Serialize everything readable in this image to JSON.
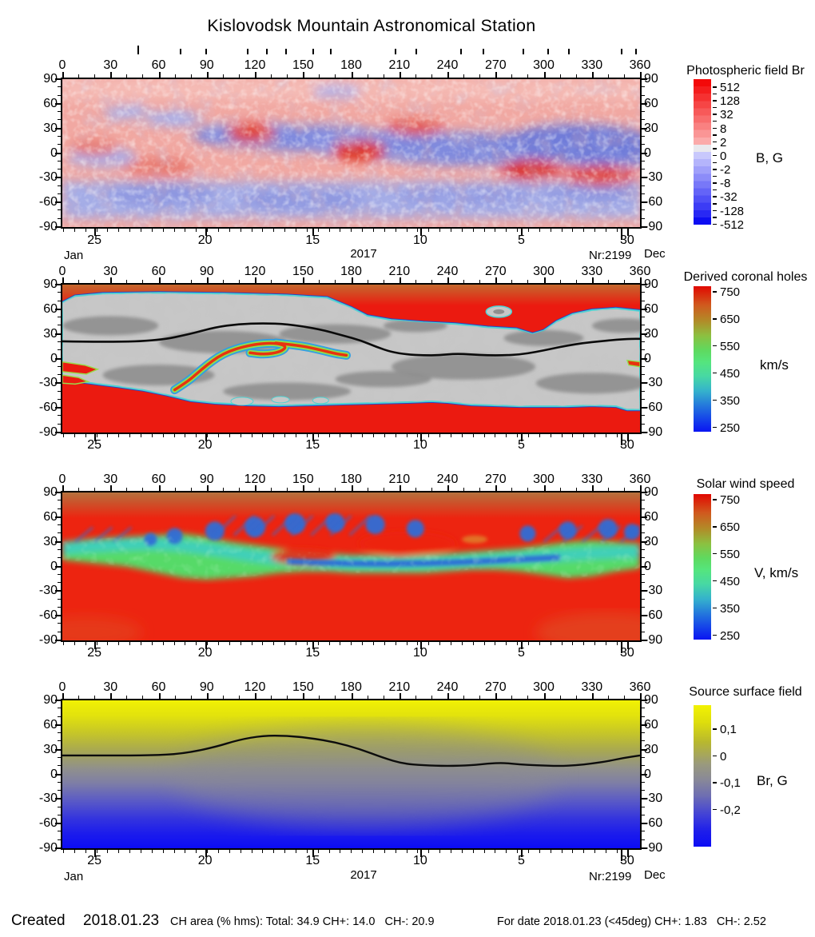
{
  "title": "Kislovodsk Mountain Astronomical Station",
  "labels": {
    "month_left": "Jan",
    "month_right": "Dec",
    "year": "2017",
    "nr": "Nr:2199"
  },
  "axes": {
    "x_tick_labels": [
      "0",
      "30",
      "60",
      "90",
      "120",
      "150",
      "180",
      "210",
      "240",
      "270",
      "300",
      "330",
      "360"
    ],
    "y_tick_labels": [
      "90",
      "60",
      "30",
      "0",
      "-30",
      "-60",
      "-90"
    ],
    "day_labels": [
      "25",
      "20",
      "15",
      "10",
      "5",
      "30"
    ],
    "day_label_lons": [
      20,
      89,
      156,
      223,
      286,
      352
    ],
    "day_mark_lons": [
      47,
      73,
      89,
      115,
      127,
      139,
      156,
      167,
      207,
      220,
      248,
      262,
      287,
      302,
      315,
      348,
      357
    ]
  },
  "panels": [
    {
      "id": "photospheric",
      "title": "Photospheric field Br",
      "unit": "B, G",
      "colorbar": {
        "style": "stepped",
        "labels": [
          "512",
          "128",
          "32",
          "8",
          "2",
          "0",
          "-2",
          "-8",
          "-32",
          "-128",
          "-512"
        ],
        "colors": [
          "#f30909",
          "#f41d1d",
          "#f53131",
          "#f64545",
          "#f75959",
          "#f86d6d",
          "#f98181",
          "#fa9595",
          "#fbaaaa",
          "#e9e9ee",
          "#c8c8fc",
          "#b4b4fb",
          "#a0a0fa",
          "#8c8cf9",
          "#7878f8",
          "#6464f7",
          "#5050f6",
          "#3c3cf5",
          "#2828f4",
          "#0d0df2"
        ]
      }
    },
    {
      "id": "coronal-holes",
      "title": "Derived coronal holes",
      "unit": "km/s",
      "colorbar": {
        "style": "smooth",
        "labels": [
          "750",
          "650",
          "550",
          "450",
          "350",
          "250"
        ],
        "stops": [
          [
            "#e10800",
            0
          ],
          [
            "#d05a1e",
            13
          ],
          [
            "#b18c28",
            24
          ],
          [
            "#8cc040",
            34
          ],
          [
            "#5fd95f",
            44
          ],
          [
            "#55e57d",
            52
          ],
          [
            "#47d8a4",
            62
          ],
          [
            "#35b2cc",
            72
          ],
          [
            "#2478dc",
            82
          ],
          [
            "#1440ea",
            92
          ],
          [
            "#0a14f2",
            100
          ]
        ]
      }
    },
    {
      "id": "wind-speed",
      "title": "Solar wind speed",
      "unit": "V, km/s",
      "colorbar": {
        "style": "smooth",
        "labels": [
          "750",
          "650",
          "550",
          "450",
          "350",
          "250"
        ],
        "stops": [
          [
            "#e10800",
            0
          ],
          [
            "#d05a1e",
            13
          ],
          [
            "#b18c28",
            24
          ],
          [
            "#8cc040",
            34
          ],
          [
            "#5fd95f",
            44
          ],
          [
            "#55e57d",
            52
          ],
          [
            "#47d8a4",
            62
          ],
          [
            "#35b2cc",
            72
          ],
          [
            "#2478dc",
            82
          ],
          [
            "#1440ea",
            92
          ],
          [
            "#0a14f2",
            100
          ]
        ]
      }
    },
    {
      "id": "source-surface",
      "title": "Source surface field",
      "unit": "Br, G",
      "colorbar": {
        "style": "smooth",
        "labels": [
          "0,1",
          "0",
          "-0,1",
          "-0,2"
        ],
        "stops": [
          [
            "#f2f202",
            0
          ],
          [
            "#dede0c",
            12
          ],
          [
            "#b8b82e",
            26
          ],
          [
            "#99997e",
            42
          ],
          [
            "#8a8a96",
            52
          ],
          [
            "#6e6eb2",
            64
          ],
          [
            "#4040d8",
            78
          ],
          [
            "#1e1eea",
            89
          ],
          [
            "#0c0cf4",
            100
          ]
        ]
      }
    }
  ],
  "footer": {
    "created_label": "Created",
    "created_date": "2018.01.23",
    "ch_area_text": "CH area (% hms): Total: 34.9 CH+: 14.0   CH-: 20.9",
    "for_date_text": "For date 2018.01.23 (<45deg) CH+: 1.83   CH-: 2.52"
  },
  "chart_data": {
    "type": "heatmap",
    "station": "Kislovodsk Mountain Astronomical Station",
    "x_axis": {
      "range": [
        0,
        360
      ],
      "ticks": [
        0,
        30,
        60,
        90,
        120,
        150,
        180,
        210,
        240,
        270,
        300,
        330,
        360
      ]
    },
    "y_axis": {
      "range": [
        -90,
        90
      ],
      "ticks": [
        90,
        60,
        30,
        0,
        -30,
        -60,
        -90
      ]
    },
    "time_axis": {
      "year": 2017,
      "rotation_number": 2199,
      "left_month": "Jan",
      "right_month": "Dec",
      "labeled_days": [
        25,
        20,
        15,
        10,
        5,
        30
      ],
      "day_label_lons": [
        20,
        89,
        156,
        223,
        286,
        352
      ]
    },
    "panels": [
      {
        "title": "Photospheric field Br",
        "unit": "B, G",
        "scale": "symmetric-log",
        "colorbar_ticks": [
          512,
          128,
          32,
          8,
          2,
          0,
          -2,
          -8,
          -32,
          -128,
          -512
        ]
      },
      {
        "title": "Derived coronal holes",
        "unit": "km/s",
        "colorbar_ticks": [
          750,
          650,
          550,
          450,
          350,
          250
        ],
        "neutral_line": [
          [
            0,
            21
          ],
          [
            30,
            20
          ],
          [
            60,
            22
          ],
          [
            80,
            30
          ],
          [
            95,
            38
          ],
          [
            110,
            42
          ],
          [
            125,
            43
          ],
          [
            140,
            42
          ],
          [
            160,
            36
          ],
          [
            175,
            28
          ],
          [
            186,
            22
          ],
          [
            196,
            14
          ],
          [
            205,
            8
          ],
          [
            215,
            5
          ],
          [
            225,
            4
          ],
          [
            235,
            4
          ],
          [
            245,
            6
          ],
          [
            255,
            5
          ],
          [
            265,
            4
          ],
          [
            275,
            4
          ],
          [
            285,
            5
          ],
          [
            295,
            8
          ],
          [
            305,
            12
          ],
          [
            315,
            16
          ],
          [
            325,
            19
          ],
          [
            335,
            21
          ],
          [
            345,
            23
          ],
          [
            355,
            24
          ],
          [
            360,
            24
          ]
        ]
      },
      {
        "title": "Solar wind speed",
        "unit": "V, km/s",
        "colorbar_ticks": [
          750,
          650,
          550,
          450,
          350,
          250
        ]
      },
      {
        "title": "Source surface field",
        "unit": "Br, G",
        "colorbar_ticks": [
          0.1,
          0,
          -0.1,
          -0.2
        ],
        "neutral_line": [
          [
            0,
            23
          ],
          [
            30,
            23
          ],
          [
            55,
            23
          ],
          [
            75,
            25
          ],
          [
            95,
            33
          ],
          [
            110,
            42
          ],
          [
            125,
            47
          ],
          [
            140,
            47
          ],
          [
            155,
            44
          ],
          [
            170,
            39
          ],
          [
            185,
            31
          ],
          [
            200,
            20
          ],
          [
            212,
            13
          ],
          [
            225,
            11
          ],
          [
            240,
            10
          ],
          [
            255,
            11
          ],
          [
            265,
            13
          ],
          [
            275,
            14
          ],
          [
            285,
            12
          ],
          [
            295,
            11
          ],
          [
            310,
            10
          ],
          [
            320,
            11
          ],
          [
            330,
            13
          ],
          [
            340,
            16
          ],
          [
            350,
            20
          ],
          [
            360,
            23
          ]
        ]
      }
    ],
    "stats": {
      "created": "2018.01.23",
      "ch_area_pct_hms": {
        "total": 34.9,
        "ch_plus": 14.0,
        "ch_minus": 20.9
      },
      "for_date": {
        "date": "2018.01.23",
        "cone_deg": 45,
        "ch_plus": 1.83,
        "ch_minus": 2.52
      }
    }
  }
}
